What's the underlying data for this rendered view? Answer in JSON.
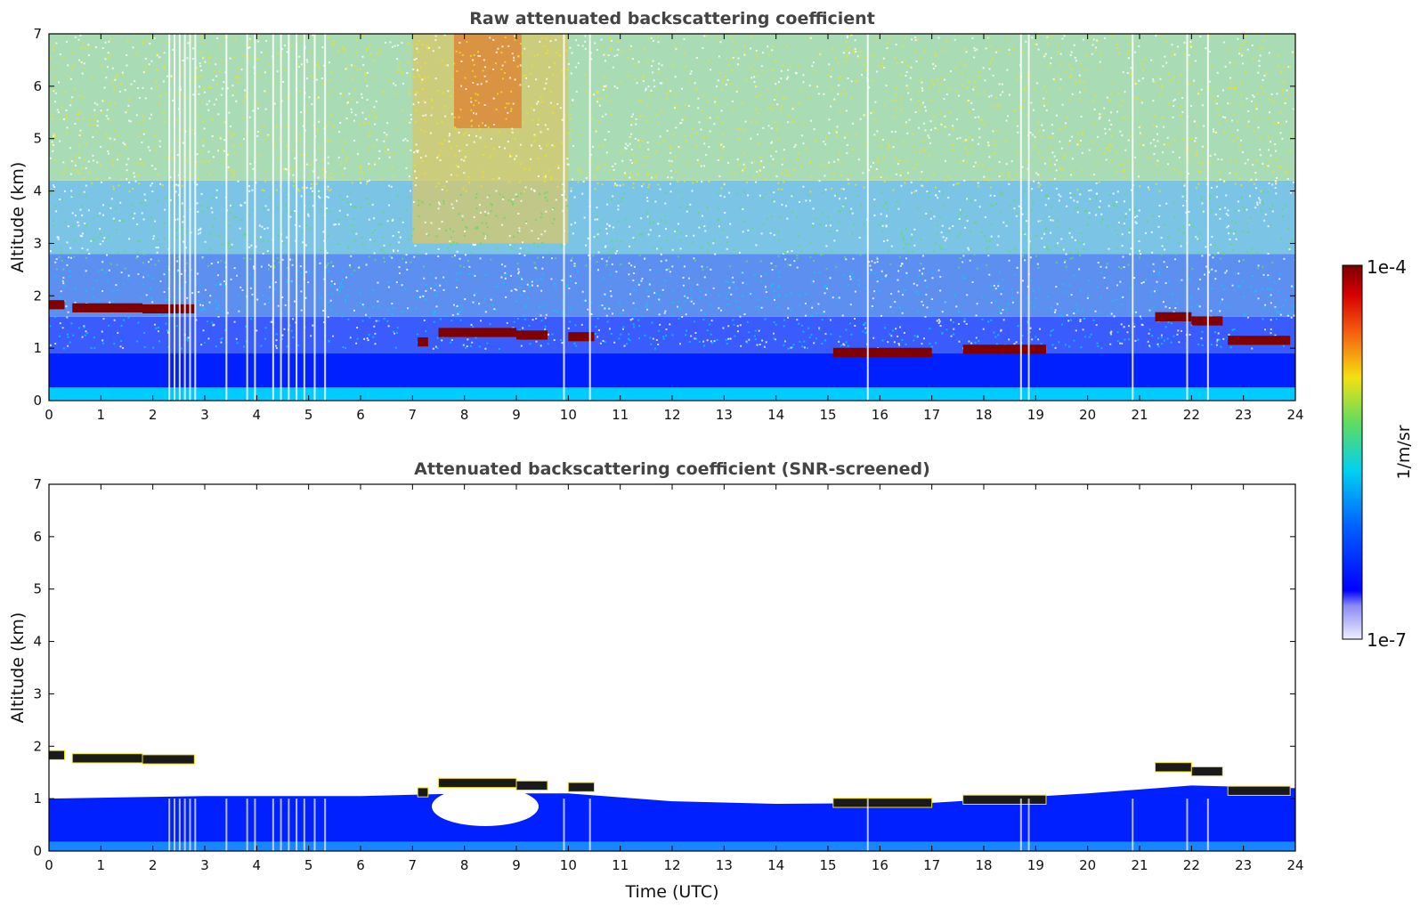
{
  "chart_data": [
    {
      "type": "heatmap",
      "title": "Raw attenuated backscattering coefficient",
      "xlabel": "",
      "ylabel": "Altitude (km)",
      "xlim": [
        0,
        24
      ],
      "ylim": [
        0,
        7
      ],
      "x_ticks": [
        "0",
        "1",
        "2",
        "3",
        "4",
        "5",
        "6",
        "7",
        "8",
        "9",
        "10",
        "11",
        "12",
        "13",
        "14",
        "15",
        "16",
        "17",
        "18",
        "19",
        "20",
        "21",
        "22",
        "23",
        "24"
      ],
      "y_ticks": [
        "0",
        "1",
        "2",
        "3",
        "4",
        "5",
        "6",
        "7"
      ],
      "cloud_layers": [
        {
          "t0": 0.0,
          "t1": 0.3,
          "alt": 1.83
        },
        {
          "t0": 0.45,
          "t1": 1.8,
          "alt": 1.77
        },
        {
          "t0": 1.8,
          "t1": 2.8,
          "alt": 1.75
        },
        {
          "t0": 7.1,
          "t1": 7.3,
          "alt": 1.12
        },
        {
          "t0": 7.5,
          "t1": 9.0,
          "alt": 1.3
        },
        {
          "t0": 9.0,
          "t1": 9.6,
          "alt": 1.25
        },
        {
          "t0": 10.0,
          "t1": 10.5,
          "alt": 1.22
        },
        {
          "t0": 15.1,
          "t1": 17.0,
          "alt": 0.92
        },
        {
          "t0": 17.6,
          "t1": 19.2,
          "alt": 0.98
        },
        {
          "t0": 21.3,
          "t1": 22.0,
          "alt": 1.6
        },
        {
          "t0": 22.0,
          "t1": 22.6,
          "alt": 1.52
        },
        {
          "t0": 22.7,
          "t1": 23.9,
          "alt": 1.15
        }
      ],
      "boundary_layer_top_km": 0.9,
      "aerosol_plume": {
        "t0": 7.0,
        "t1": 10.0,
        "alt0": 3.0,
        "alt1": 7.0
      },
      "dropouts_hours": [
        2.3,
        2.4,
        2.5,
        2.6,
        2.7,
        2.8,
        3.4,
        3.8,
        3.95,
        4.3,
        4.45,
        4.6,
        4.75,
        4.9,
        5.1,
        5.3,
        9.9,
        10.4,
        15.75,
        18.7,
        18.85,
        20.85,
        21.9,
        22.3
      ]
    },
    {
      "type": "heatmap",
      "title": "Attenuated backscattering coefficient (SNR-screened)",
      "xlabel": "Time (UTC)",
      "ylabel": "Altitude (km)",
      "xlim": [
        0,
        24
      ],
      "ylim": [
        0,
        7
      ],
      "x_ticks": [
        "0",
        "1",
        "2",
        "3",
        "4",
        "5",
        "6",
        "7",
        "8",
        "9",
        "10",
        "11",
        "12",
        "13",
        "14",
        "15",
        "16",
        "17",
        "18",
        "19",
        "20",
        "21",
        "22",
        "23",
        "24"
      ],
      "y_ticks": [
        "0",
        "1",
        "2",
        "3",
        "4",
        "5",
        "6",
        "7"
      ],
      "screened_layer_top_km": [
        {
          "t": 0,
          "alt": 1.0
        },
        {
          "t": 3,
          "alt": 1.05
        },
        {
          "t": 6,
          "alt": 1.05
        },
        {
          "t": 8,
          "alt": 1.1
        },
        {
          "t": 10,
          "alt": 1.1
        },
        {
          "t": 12,
          "alt": 0.95
        },
        {
          "t": 14,
          "alt": 0.9
        },
        {
          "t": 17,
          "alt": 0.92
        },
        {
          "t": 20,
          "alt": 1.1
        },
        {
          "t": 22,
          "alt": 1.25
        },
        {
          "t": 24,
          "alt": 1.2
        }
      ]
    }
  ],
  "colorbar": {
    "label": "1/m/sr",
    "min_label": "1e-7",
    "max_label": "1e-4"
  },
  "colors": {
    "low": "#e8e8ff",
    "blue": "#0020ff",
    "cyan": "#00ccff",
    "green": "#5fdc64",
    "yellow": "#f0e01e",
    "red": "#e61e00",
    "darkred": "#800000",
    "title_text": "#444444"
  }
}
